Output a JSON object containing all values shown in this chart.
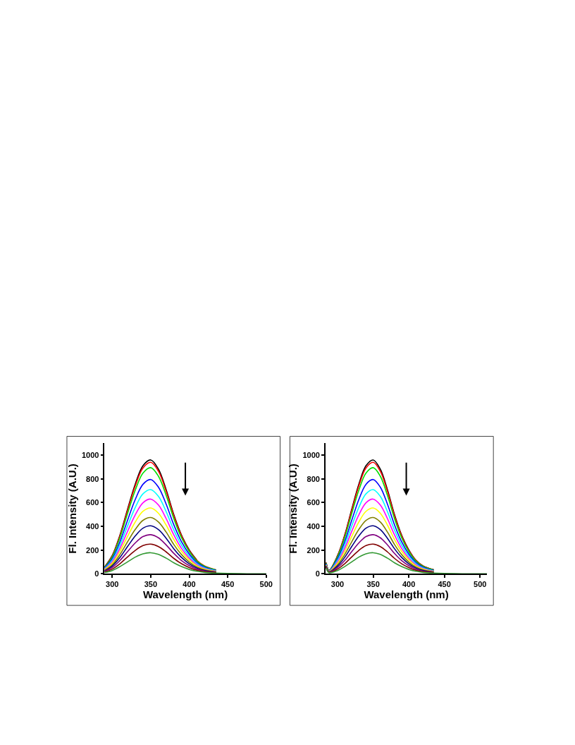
{
  "chart_data": [
    {
      "type": "line",
      "xlabel": "Wavelength (nm)",
      "ylabel": "Fl. Intensity (A.U.)",
      "xlim": [
        290,
        500
      ],
      "xticks": [
        300,
        350,
        400,
        450,
        500
      ],
      "ylim": [
        0,
        1100
      ],
      "yticks": [
        0,
        200,
        400,
        600,
        800,
        1000
      ],
      "grid": false,
      "marker": "none",
      "line_style": "solid",
      "x": [
        290,
        300,
        310,
        320,
        330,
        340,
        350,
        360,
        370,
        380,
        390,
        400,
        410,
        420,
        435,
        450,
        475,
        500
      ],
      "series": [
        {
          "color": "#000000",
          "values": [
            58,
            154,
            326,
            547,
            758,
            912,
            960,
            883,
            710,
            499,
            326,
            202,
            115,
            null,
            null,
            null,
            null,
            null
          ]
        },
        {
          "color": "#ff0000",
          "values": [
            56,
            150,
            320,
            536,
            743,
            893,
            940,
            865,
            696,
            489,
            320,
            197,
            113,
            66,
            33,
            null,
            null,
            null
          ]
        },
        {
          "color": "#00dd00",
          "values": [
            54,
            143,
            304,
            510,
            707,
            850,
            895,
            823,
            662,
            465,
            304,
            188,
            107,
            63,
            31,
            null,
            null,
            null
          ]
        },
        {
          "color": "#0000ff",
          "values": [
            48,
            127,
            270,
            453,
            628,
            755,
            795,
            731,
            588,
            413,
            270,
            167,
            95,
            56,
            28,
            null,
            null,
            null
          ]
        },
        {
          "color": "#00ffff",
          "values": [
            43,
            114,
            241,
            405,
            561,
            675,
            710,
            653,
            525,
            369,
            241,
            149,
            85,
            50,
            25,
            null,
            null,
            null
          ]
        },
        {
          "color": "#ff00ff",
          "values": [
            38,
            101,
            214,
            359,
            498,
            599,
            630,
            580,
            466,
            328,
            214,
            132,
            76,
            44,
            22,
            null,
            null,
            null
          ]
        },
        {
          "color": "#ffff00",
          "values": [
            33,
            89,
            189,
            316,
            438,
            527,
            555,
            511,
            411,
            289,
            189,
            117,
            67,
            39,
            19,
            null,
            null,
            null
          ]
        },
        {
          "color": "#808000",
          "values": [
            29,
            76,
            162,
            271,
            375,
            451,
            475,
            437,
            352,
            247,
            162,
            100,
            57,
            33,
            17,
            null,
            null,
            null
          ]
        },
        {
          "color": "#000080",
          "values": [
            24,
            65,
            138,
            231,
            320,
            385,
            405,
            373,
            300,
            211,
            138,
            85,
            49,
            28,
            14,
            null,
            null,
            null
          ]
        },
        {
          "color": "#800080",
          "values": [
            20,
            53,
            112,
            188,
            261,
            314,
            330,
            304,
            244,
            172,
            112,
            69,
            40,
            23,
            12,
            null,
            null,
            null
          ]
        },
        {
          "color": "#800000",
          "values": [
            15,
            40,
            85,
            143,
            198,
            238,
            250,
            230,
            185,
            130,
            85,
            53,
            30,
            18,
            9,
            null,
            null,
            null
          ]
        },
        {
          "color": "#339933",
          "values": [
            11,
            28,
            61,
            101,
            141,
            169,
            178,
            164,
            132,
            93,
            61,
            37,
            21,
            12,
            6,
            3,
            1,
            1
          ]
        }
      ]
    },
    {
      "type": "line",
      "xlabel": "Wavelength (nm)",
      "ylabel": "Fl. Intensity (A.U.)",
      "xlim": [
        283,
        510
      ],
      "xticks": [
        300,
        350,
        400,
        450,
        500
      ],
      "ylim": [
        0,
        1100
      ],
      "yticks": [
        0,
        200,
        400,
        600,
        800,
        1000
      ],
      "grid": false,
      "marker": "none",
      "line_style": "solid",
      "x": [
        284,
        288,
        300,
        310,
        320,
        330,
        340,
        350,
        360,
        370,
        380,
        390,
        400,
        410,
        420,
        435,
        450,
        475,
        500,
        510
      ],
      "series": [
        {
          "color": "#000000",
          "values": [
            95,
            30,
            154,
            326,
            547,
            758,
            912,
            960,
            883,
            710,
            499,
            326,
            202,
            115,
            67,
            34,
            null,
            null,
            null,
            null
          ]
        },
        {
          "color": "#ff0000",
          "values": [
            93,
            29,
            150,
            320,
            536,
            743,
            893,
            940,
            865,
            696,
            489,
            320,
            197,
            113,
            66,
            33,
            null,
            null,
            null,
            null
          ]
        },
        {
          "color": "#00dd00",
          "values": [
            90,
            28,
            143,
            304,
            510,
            707,
            850,
            895,
            823,
            662,
            465,
            304,
            188,
            107,
            63,
            31,
            null,
            null,
            null,
            null
          ]
        },
        {
          "color": "#0000ff",
          "values": [
            85,
            26,
            127,
            270,
            453,
            628,
            755,
            795,
            731,
            588,
            413,
            270,
            167,
            95,
            56,
            28,
            null,
            null,
            null,
            null
          ]
        },
        {
          "color": "#00ffff",
          "values": [
            80,
            24,
            114,
            241,
            405,
            561,
            675,
            710,
            653,
            525,
            369,
            241,
            149,
            85,
            50,
            25,
            null,
            null,
            null,
            null
          ]
        },
        {
          "color": "#ff00ff",
          "values": [
            76,
            22,
            101,
            214,
            359,
            498,
            599,
            630,
            580,
            466,
            328,
            214,
            132,
            76,
            44,
            22,
            null,
            null,
            null,
            null
          ]
        },
        {
          "color": "#ffff00",
          "values": [
            72,
            20,
            89,
            189,
            316,
            438,
            527,
            555,
            511,
            411,
            289,
            189,
            117,
            67,
            39,
            19,
            null,
            null,
            null,
            null
          ]
        },
        {
          "color": "#808000",
          "values": [
            68,
            18,
            76,
            162,
            271,
            375,
            451,
            475,
            437,
            352,
            247,
            162,
            100,
            57,
            33,
            17,
            null,
            null,
            null,
            null
          ]
        },
        {
          "color": "#000080",
          "values": [
            64,
            16,
            65,
            138,
            231,
            320,
            385,
            405,
            373,
            300,
            211,
            138,
            85,
            49,
            28,
            14,
            null,
            null,
            null,
            null
          ]
        },
        {
          "color": "#800080",
          "values": [
            60,
            14,
            53,
            112,
            188,
            261,
            314,
            330,
            304,
            244,
            172,
            112,
            69,
            40,
            23,
            12,
            null,
            null,
            null,
            null
          ]
        },
        {
          "color": "#800000",
          "values": [
            55,
            12,
            40,
            85,
            143,
            198,
            238,
            250,
            230,
            185,
            130,
            85,
            53,
            30,
            18,
            9,
            null,
            null,
            null,
            null
          ]
        },
        {
          "color": "#339933",
          "values": [
            50,
            10,
            28,
            61,
            101,
            141,
            169,
            178,
            164,
            132,
            93,
            61,
            37,
            21,
            12,
            6,
            3,
            1,
            1,
            1
          ]
        }
      ]
    }
  ]
}
